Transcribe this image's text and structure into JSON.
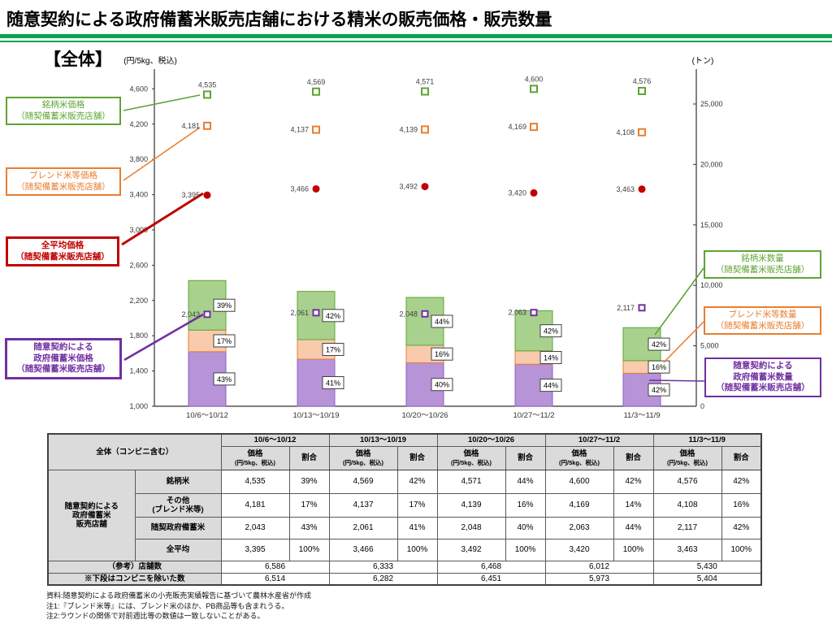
{
  "page": {
    "title": "随意契約による政府備蓄米販売店舗における精米の販売価格・販売数量",
    "section_label": "【全体】"
  },
  "colors": {
    "brand_green": "#5EA434",
    "blend_orange": "#E97E30",
    "average_red": "#C00000",
    "reserve_purple": "#7030A0",
    "bar_green_fill": "#A9D18E",
    "bar_orange_fill": "#F8CBAD",
    "bar_purple_fill": "#B793D8",
    "header_rule_green": "#00A550",
    "table_header_bg": "#DBDBDB"
  },
  "chart_data": {
    "type": "bar+scatter combo (stacked quantity bars on right axis, price points on left axis)",
    "categories": [
      "10/6～10/12",
      "10/13～10/19",
      "10/20～10/26",
      "10/27～11/2",
      "11/3～11/9"
    ],
    "left_axis": {
      "unit_label": "(円/5kg、税込)",
      "min": 1000,
      "max": 4600,
      "step": 400
    },
    "right_axis": {
      "unit_label": "(トン)",
      "min": 0,
      "max": 25000,
      "step": 5000
    },
    "price_series": [
      {
        "id": "brand-rice-price",
        "label": "銘柄米価格（随契備蓄米販売店舗）",
        "marker": "open-square",
        "color": "#5EA434",
        "values": [
          4535,
          4569,
          4571,
          4600,
          4576
        ]
      },
      {
        "id": "blend-rice-price",
        "label": "ブレンド米等価格（随契備蓄米販売店舗）",
        "marker": "open-square",
        "color": "#E97E30",
        "values": [
          4181,
          4137,
          4139,
          4169,
          4108
        ]
      },
      {
        "id": "all-average-price",
        "label": "全平均価格（随契備蓄米販売店舗）",
        "marker": "filled-circle",
        "color": "#C00000",
        "values": [
          3395,
          3466,
          3492,
          3420,
          3463
        ]
      },
      {
        "id": "reserve-rice-price",
        "label": "随意契約による政府備蓄米価格（随契備蓄米販売店舗）",
        "marker": "open-square",
        "color": "#7030A0",
        "values": [
          2043,
          2061,
          2048,
          2063,
          2117
        ]
      }
    ],
    "quantity_bars": {
      "note": "totals estimated from right axis gridlines (bars unlabeled except share %)",
      "total_tons_estimated": [
        10400,
        9500,
        9000,
        7900,
        6500
      ],
      "segments_bottom_to_top": [
        {
          "id": "reserve-rice-qty",
          "label": "随意契約による政府備蓄米数量（随契備蓄米販売店舗）",
          "fill": "#B793D8",
          "border": "#8F5FC0",
          "pct": [
            43,
            41,
            40,
            44,
            42
          ]
        },
        {
          "id": "blend-rice-qty",
          "label": "ブレンド米等数量（随契備蓄米販売店舗）",
          "fill": "#F8CBAD",
          "border": "#E97E30",
          "pct": [
            17,
            17,
            16,
            14,
            16
          ]
        },
        {
          "id": "brand-rice-qty",
          "label": "銘柄米数量（随契備蓄米販売店舗）",
          "fill": "#A9D18E",
          "border": "#5EA434",
          "pct": [
            39,
            42,
            44,
            42,
            42
          ]
        }
      ]
    }
  },
  "callouts": {
    "left": [
      {
        "id": "brand-rice-price-callout",
        "lines": [
          "銘柄米価格",
          "（随契備蓄米販売店舗）"
        ]
      },
      {
        "id": "blend-rice-price-callout",
        "lines": [
          "ブレンド米等価格",
          "（随契備蓄米販売店舗）"
        ]
      },
      {
        "id": "all-average-price-callout",
        "lines": [
          "全平均価格",
          "（随契備蓄米販売店舗）"
        ]
      },
      {
        "id": "reserve-rice-price-callout",
        "lines": [
          "随意契約による",
          "政府備蓄米価格",
          "（随契備蓄米販売店舗）"
        ]
      }
    ],
    "right": [
      {
        "id": "brand-rice-qty-callout",
        "lines": [
          "銘柄米数量",
          "（随契備蓄米販売店舗）"
        ]
      },
      {
        "id": "blend-rice-qty-callout",
        "lines": [
          "ブレンド米等数量",
          "（随契備蓄米販売店舗）"
        ]
      },
      {
        "id": "reserve-rice-qty-callout",
        "lines": [
          "随意契約による",
          "政府備蓄米数量",
          "（随契備蓄米販売店舗）"
        ]
      }
    ]
  },
  "table": {
    "corner": "全体（コンビニ含む）",
    "weeks": [
      "10/6～10/12",
      "10/13～10/19",
      "10/20～10/26",
      "10/27～11/2",
      "11/3～11/9"
    ],
    "price_header": "価格",
    "price_header_sub": "(円/5kg、税込)",
    "ratio_header": "割合",
    "group_label_lines": [
      "随意契約による",
      "政府備蓄米",
      "販売店舗"
    ],
    "rows": [
      {
        "label": "銘柄米",
        "label2": "",
        "price": [
          "4,535",
          "4,569",
          "4,571",
          "4,600",
          "4,576"
        ],
        "ratio": [
          "39%",
          "42%",
          "44%",
          "42%",
          "42%"
        ]
      },
      {
        "label": "その他",
        "label2": "(ブレンド米等)",
        "price": [
          "4,181",
          "4,137",
          "4,139",
          "4,169",
          "4,108"
        ],
        "ratio": [
          "17%",
          "17%",
          "16%",
          "14%",
          "16%"
        ]
      },
      {
        "label": "随契政府備蓄米",
        "label2": "",
        "price": [
          "2,043",
          "2,061",
          "2,048",
          "2,063",
          "2,117"
        ],
        "ratio": [
          "43%",
          "41%",
          "40%",
          "44%",
          "42%"
        ]
      },
      {
        "label": "全平均",
        "label2": "",
        "price": [
          "3,395",
          "3,466",
          "3,492",
          "3,420",
          "3,463"
        ],
        "ratio": [
          "100%",
          "100%",
          "100%",
          "100%",
          "100%"
        ]
      }
    ],
    "store_rows": [
      {
        "label": "（参考）店舗数",
        "values": [
          "6,586",
          "6,333",
          "6,468",
          "6,012",
          "5,430"
        ]
      },
      {
        "label": "※下段はコンビニを除いた数",
        "values": [
          "6,514",
          "6,282",
          "6,451",
          "5,973",
          "5,404"
        ]
      }
    ]
  },
  "footnotes": [
    "資料:随意契約による政府備蓄米の小売販売実績報告に基づいて農林水産省が作成",
    "注1:『ブレンド米等』には、ブレンド米のほか、PB商品等も含まれうる。",
    "注2:ラウンドの関係で対前週比等の数値は一致しないことがある。"
  ]
}
